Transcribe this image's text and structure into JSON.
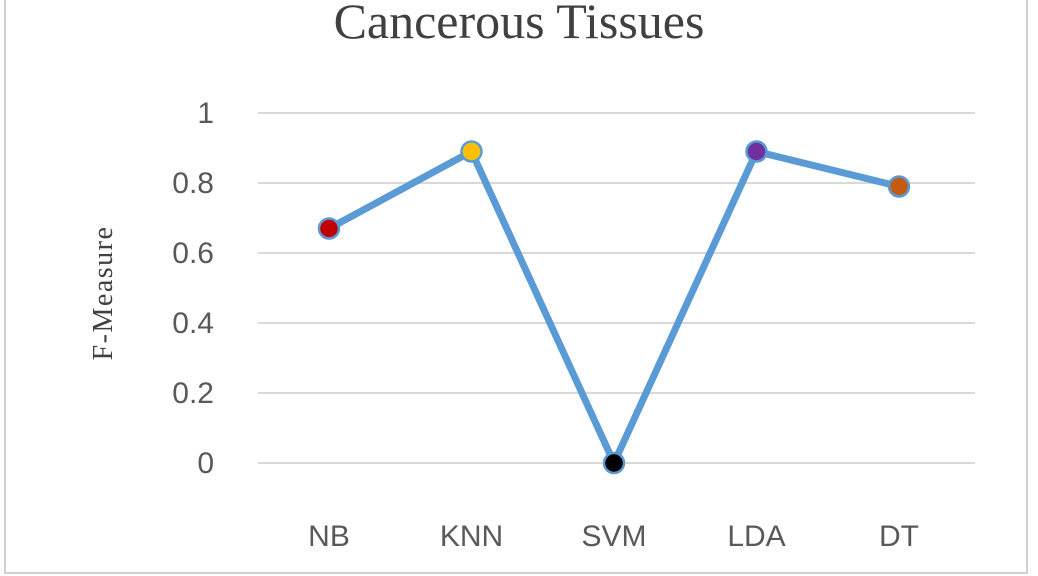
{
  "chart_data": {
    "type": "line",
    "title": "Cancerous Tissues",
    "xlabel": "",
    "ylabel": "F-Measure",
    "categories": [
      "NB",
      "KNN",
      "SVM",
      "LDA",
      "DT"
    ],
    "y_ticks": [
      "0",
      "0.2",
      "0.4",
      "0.6",
      "0.8",
      "1"
    ],
    "ylim": [
      0,
      1
    ],
    "grid": true,
    "series": [
      {
        "values": [
          0.67,
          0.89,
          0.0,
          0.89,
          0.79
        ],
        "line_color": "#5b9bd5",
        "marker_colors": [
          "#c00000",
          "#ffc000",
          "#000000",
          "#7030a0",
          "#c55a11"
        ]
      }
    ]
  }
}
